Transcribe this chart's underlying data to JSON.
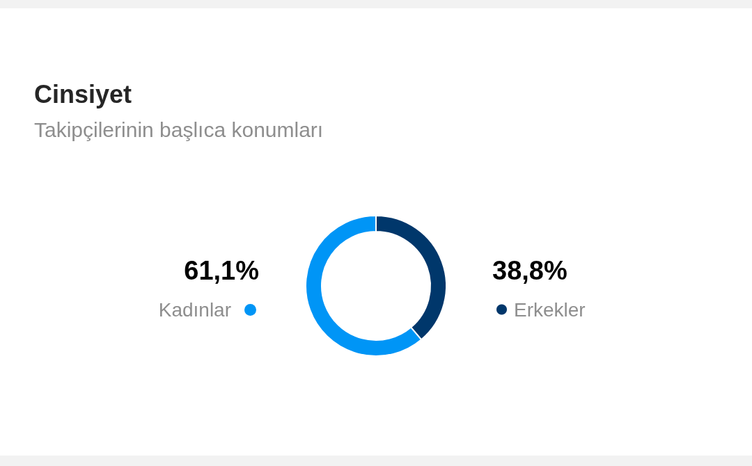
{
  "chart_data": {
    "type": "donut",
    "title": "Cinsiyet",
    "subtitle": "Takipçilerinin başlıca konumları",
    "categories": [
      "Kadınlar",
      "Erkekler"
    ],
    "values": [
      61.1,
      38.8
    ],
    "colors": [
      "#0095f6",
      "#00376b"
    ],
    "value_labels": [
      "61,1%",
      "38,8%"
    ]
  }
}
